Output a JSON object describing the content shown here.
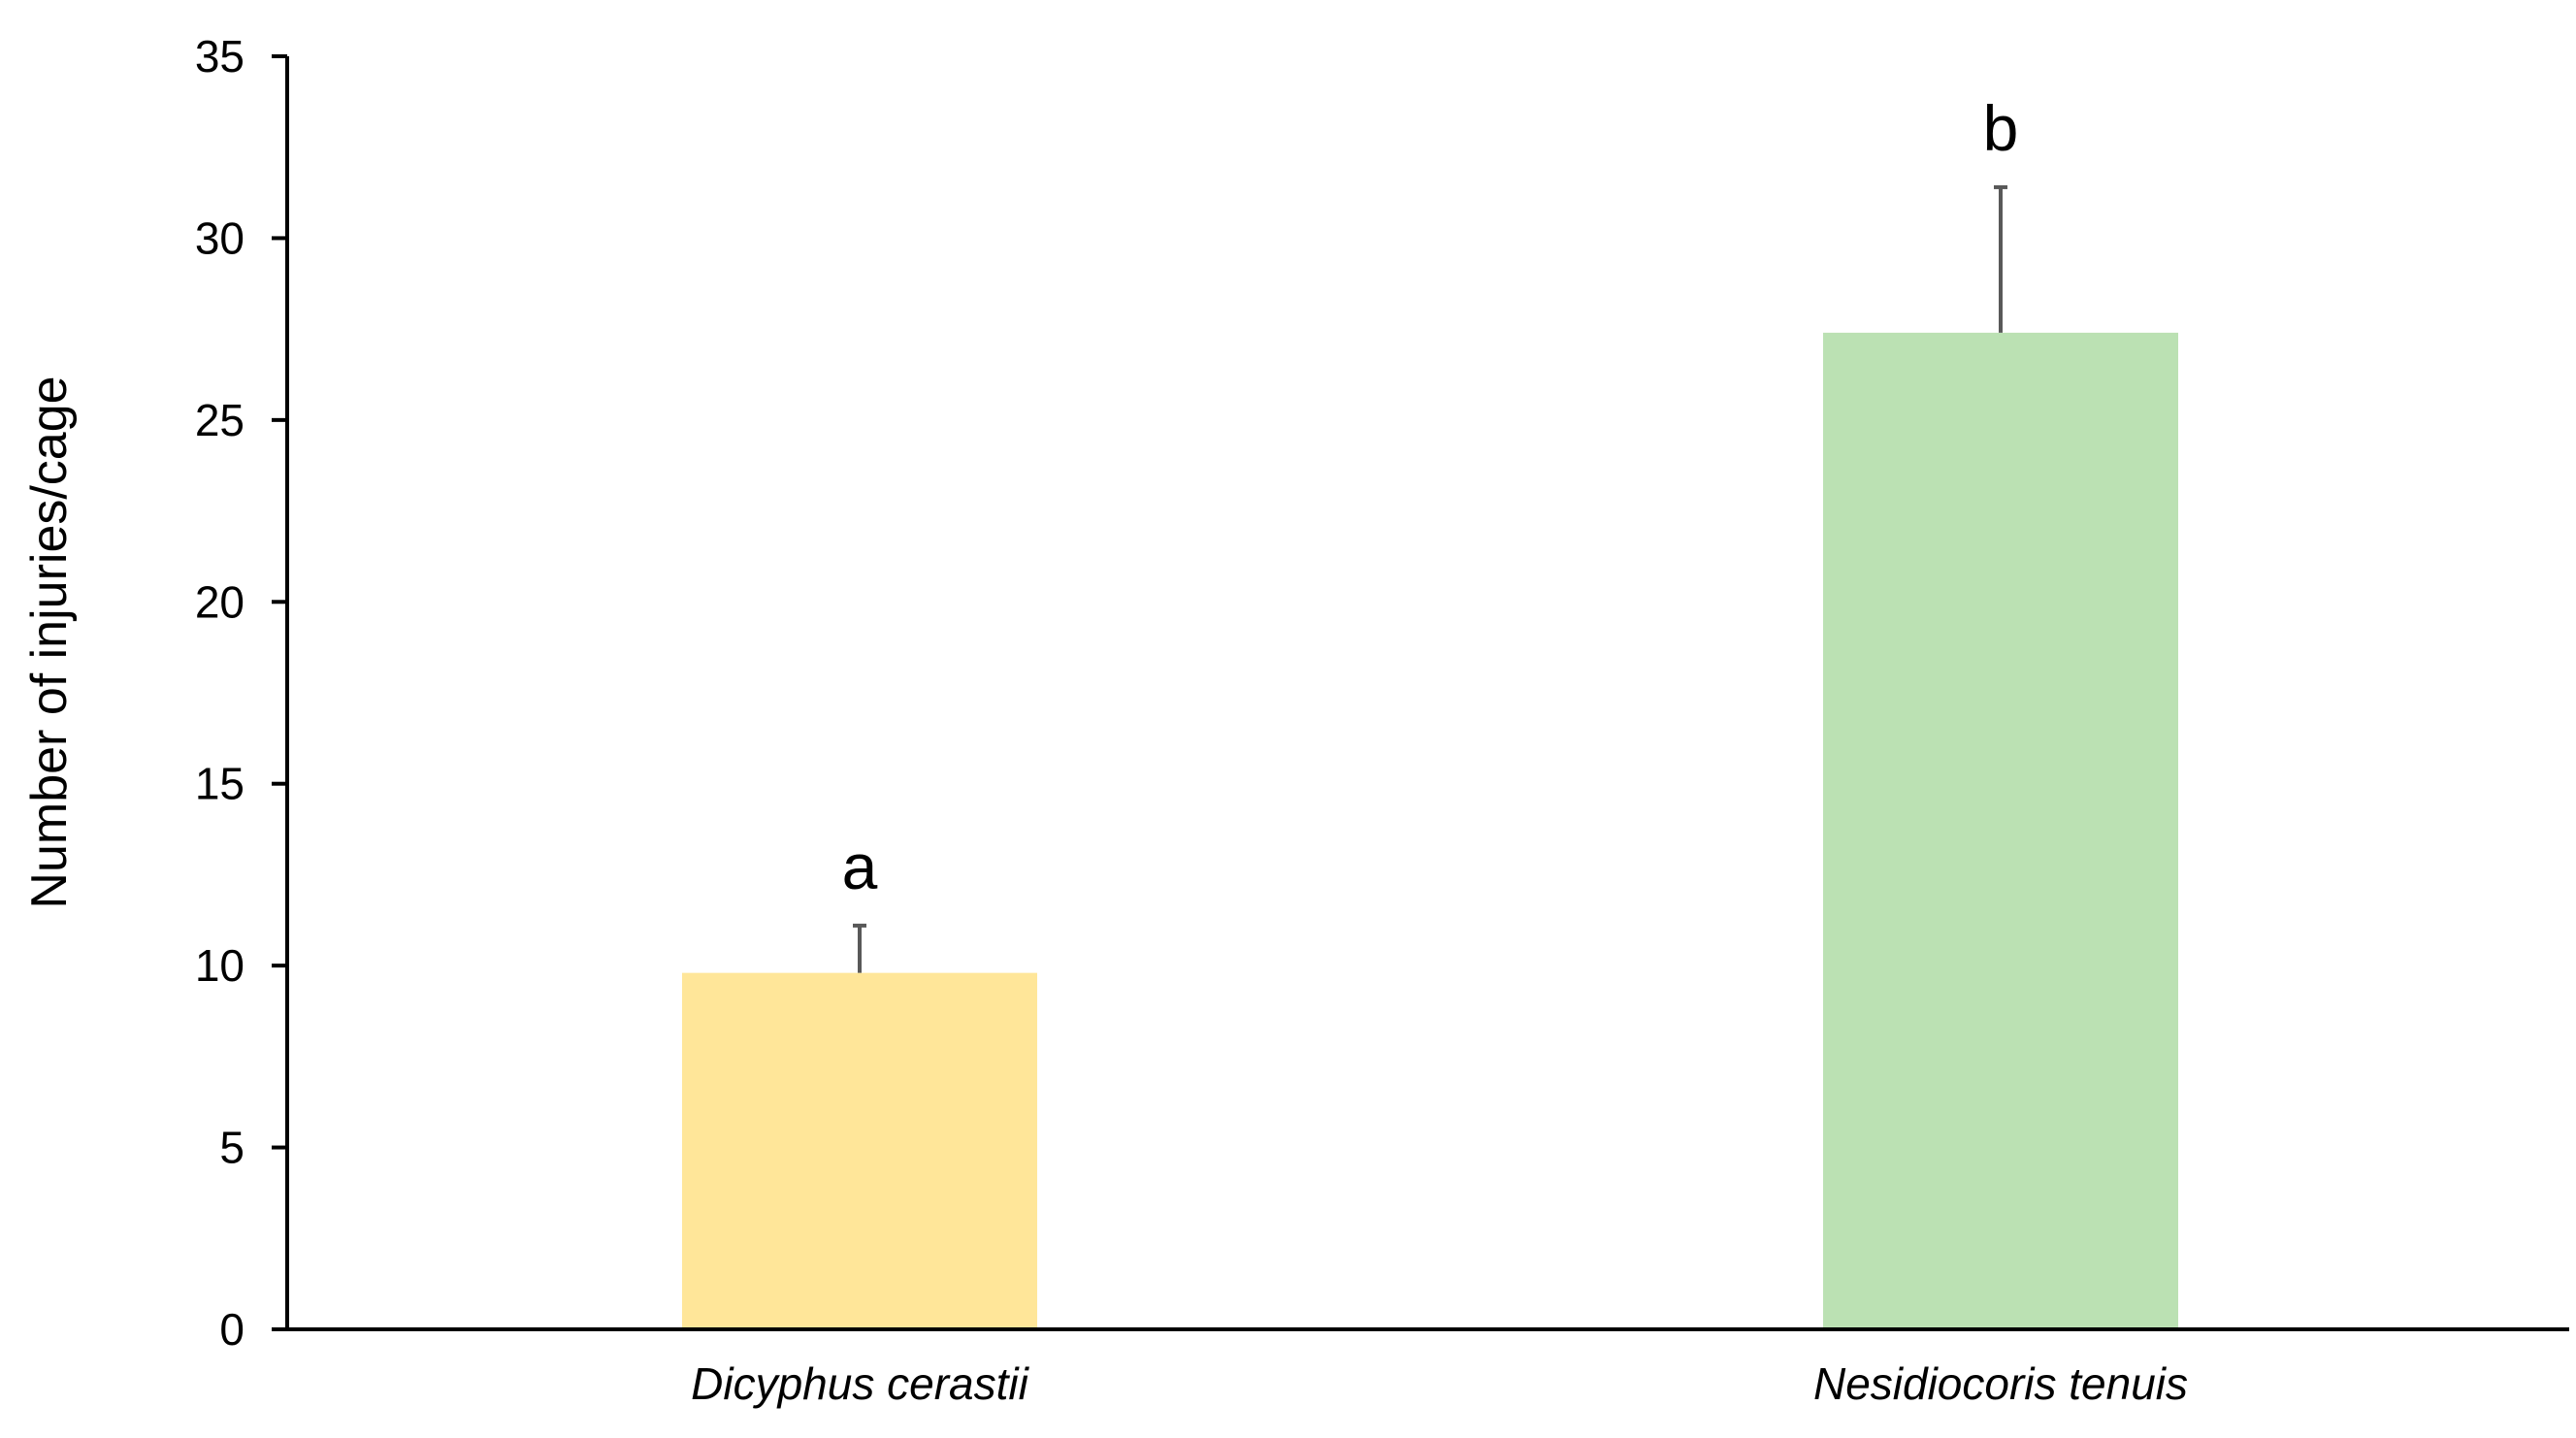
{
  "chart_data": {
    "type": "bar",
    "title": "",
    "xlabel": "",
    "ylabel": "Number of injuries/cage",
    "ylim": [
      0,
      35
    ],
    "yticks": [
      0,
      5,
      10,
      15,
      20,
      25,
      30,
      35
    ],
    "ytick_labels": [
      "0",
      "5",
      "10",
      "15",
      "20",
      "25",
      "30",
      "35"
    ],
    "grid": false,
    "legend": "none",
    "categories": [
      "Dicyphus cerastii",
      "Nesidiocoris tenuis"
    ],
    "values": [
      9.8,
      27.4
    ],
    "error_upper": [
      11.1,
      31.4
    ],
    "significance_labels": [
      "a",
      "b"
    ],
    "colors": [
      "#FFE699",
      "#BBE1B3"
    ],
    "axis_color": "#000000",
    "error_bar_color": "#595959"
  }
}
